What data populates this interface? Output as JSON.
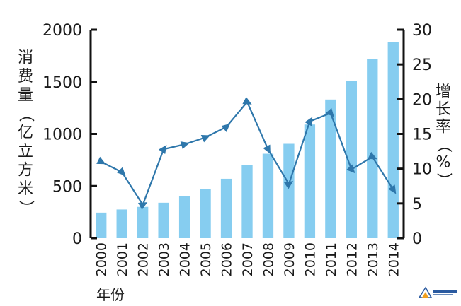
{
  "chart_data": {
    "type": "bar+line",
    "categories": [
      "2000",
      "2001",
      "2002",
      "2003",
      "2004",
      "2005",
      "2006",
      "2007",
      "2008",
      "2009",
      "2010",
      "2011",
      "2012",
      "2013",
      "2014"
    ],
    "series": [
      {
        "axis": "left",
        "kind": "bar",
        "color": "#86cdf0",
        "values": [
          245,
          275,
          300,
          340,
          400,
          470,
          570,
          705,
          810,
          905,
          1090,
          1330,
          1510,
          1720,
          1880
        ]
      },
      {
        "axis": "right",
        "kind": "line",
        "color": "#2e77ab",
        "values": [
          11.0,
          9.5,
          4.8,
          12.8,
          13.5,
          14.5,
          16.0,
          19.6,
          12.8,
          7.8,
          16.8,
          18.0,
          9.9,
          11.7,
          7.0
        ]
      }
    ],
    "y_left": {
      "label": [
        "消",
        "费",
        "量",
        "（",
        "亿",
        "立",
        "方",
        "米",
        "）"
      ],
      "ylim": [
        0,
        2000
      ],
      "ticks": [
        "0",
        "500",
        "1000",
        "1500",
        "2000"
      ]
    },
    "y_right": {
      "label": [
        "增",
        "长",
        "率",
        "（",
        "%",
        "）"
      ],
      "ylim": [
        0,
        30
      ],
      "ticks": [
        "0",
        "5",
        "10",
        "15",
        "20",
        "25",
        "30"
      ]
    },
    "xlabel": "年份",
    "grid": false,
    "legend": "none"
  }
}
